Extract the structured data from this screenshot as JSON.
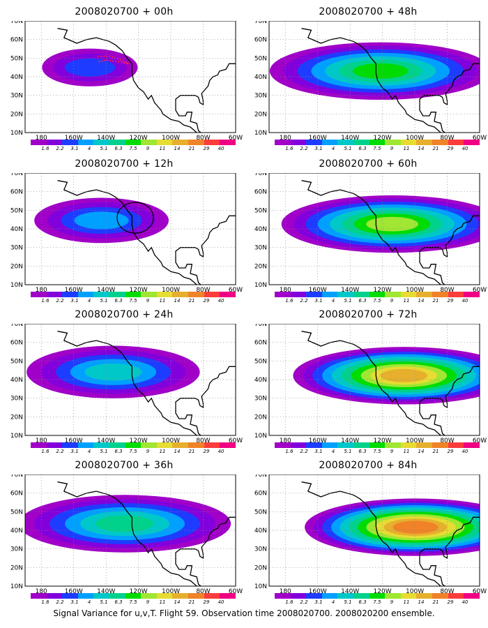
{
  "panels": [
    {
      "title": "2008020700 + 00h",
      "hours": 0
    },
    {
      "title": "2008020700 + 48h",
      "hours": 48
    },
    {
      "title": "2008020700 + 12h",
      "hours": 12
    },
    {
      "title": "2008020700 + 60h",
      "hours": 60
    },
    {
      "title": "2008020700 + 24h",
      "hours": 24
    },
    {
      "title": "2008020700 + 72h",
      "hours": 72
    },
    {
      "title": "2008020700 + 36h",
      "hours": 36
    },
    {
      "title": "2008020700 + 84h",
      "hours": 84
    }
  ],
  "axes": {
    "lat_labels": [
      "70N",
      "60N",
      "50N",
      "40N",
      "30N",
      "20N",
      "10N"
    ],
    "lon_labels": [
      "180",
      "160W",
      "140W",
      "120W",
      "100W",
      "80W",
      "60W"
    ],
    "lat_range": [
      10,
      70
    ],
    "lon_range": [
      -190,
      -60
    ]
  },
  "colorbar": {
    "labels": [
      "1.6",
      "2.2",
      "3.1",
      "4",
      "5.1",
      "6.3",
      "7.5",
      "9",
      "11",
      "14",
      "21",
      "29",
      "40"
    ],
    "colors": [
      "#a000c8",
      "#8200dc",
      "#1e3cff",
      "#00a0ff",
      "#00c8c8",
      "#00d28c",
      "#00dc00",
      "#a0e632",
      "#e6dc32",
      "#e6af2d",
      "#f08228",
      "#fa3c3c",
      "#f00082"
    ]
  },
  "footer": "Signal Variance for u,v,T. Flight 59. Observation time 2008020700. 2008020200 ensemble."
}
